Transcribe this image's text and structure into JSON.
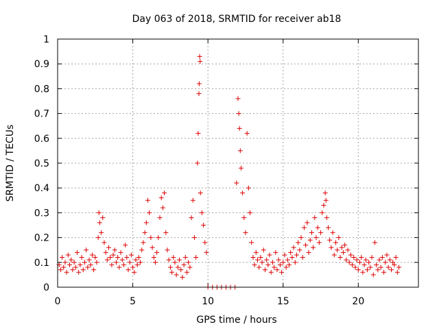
{
  "chart_data": {
    "type": "scatter",
    "title": "Day 063 of 2018, SRMTID for receiver ab18",
    "xlabel": "GPS time / hours",
    "ylabel": "SRMTID / TECUs",
    "xlim": [
      0,
      24
    ],
    "ylim": [
      0,
      1
    ],
    "xticks": [
      "0",
      "5",
      "10",
      "15",
      "20"
    ],
    "yticks": [
      "0",
      "0.1",
      "0.2",
      "0.3",
      "0.4",
      "0.5",
      "0.6",
      "0.7",
      "0.8",
      "0.9",
      "1"
    ],
    "grid": true,
    "marker": "+",
    "color": "#dd0000",
    "series": [
      {
        "name": "SRMTID",
        "points": [
          [
            0.1,
            0.09
          ],
          [
            0.2,
            0.07
          ],
          [
            0.3,
            0.12
          ],
          [
            0.4,
            0.08
          ],
          [
            0.5,
            0.1
          ],
          [
            0.6,
            0.06
          ],
          [
            0.7,
            0.13
          ],
          [
            0.8,
            0.09
          ],
          [
            0.9,
            0.11
          ],
          [
            1.0,
            0.07
          ],
          [
            1.1,
            0.1
          ],
          [
            1.2,
            0.08
          ],
          [
            1.3,
            0.14
          ],
          [
            1.4,
            0.06
          ],
          [
            1.5,
            0.09
          ],
          [
            1.6,
            0.12
          ],
          [
            1.7,
            0.07
          ],
          [
            1.8,
            0.1
          ],
          [
            1.9,
            0.15
          ],
          [
            2.0,
            0.08
          ],
          [
            2.1,
            0.11
          ],
          [
            2.2,
            0.09
          ],
          [
            2.3,
            0.13
          ],
          [
            2.4,
            0.07
          ],
          [
            2.5,
            0.12
          ],
          [
            2.6,
            0.1
          ],
          [
            2.7,
            0.2
          ],
          [
            2.75,
            0.3
          ],
          [
            2.8,
            0.26
          ],
          [
            2.9,
            0.22
          ],
          [
            3.0,
            0.28
          ],
          [
            3.1,
            0.18
          ],
          [
            3.2,
            0.14
          ],
          [
            3.3,
            0.11
          ],
          [
            3.4,
            0.16
          ],
          [
            3.5,
            0.12
          ],
          [
            3.6,
            0.09
          ],
          [
            3.7,
            0.13
          ],
          [
            3.8,
            0.15
          ],
          [
            3.9,
            0.1
          ],
          [
            4.0,
            0.12
          ],
          [
            4.1,
            0.08
          ],
          [
            4.2,
            0.14
          ],
          [
            4.3,
            0.11
          ],
          [
            4.4,
            0.09
          ],
          [
            4.5,
            0.17
          ],
          [
            4.6,
            0.12
          ],
          [
            4.7,
            0.07
          ],
          [
            4.8,
            0.1
          ],
          [
            4.9,
            0.13
          ],
          [
            5.0,
            0.08
          ],
          [
            5.1,
            0.06
          ],
          [
            5.2,
            0.11
          ],
          [
            5.3,
            0.09
          ],
          [
            5.4,
            0.12
          ],
          [
            5.5,
            0.1
          ],
          [
            5.6,
            0.15
          ],
          [
            5.7,
            0.18
          ],
          [
            5.8,
            0.22
          ],
          [
            5.9,
            0.26
          ],
          [
            6.0,
            0.35
          ],
          [
            6.1,
            0.3
          ],
          [
            6.2,
            0.2
          ],
          [
            6.3,
            0.16
          ],
          [
            6.4,
            0.12
          ],
          [
            6.5,
            0.1
          ],
          [
            6.6,
            0.14
          ],
          [
            6.7,
            0.2
          ],
          [
            6.8,
            0.28
          ],
          [
            6.9,
            0.36
          ],
          [
            7.0,
            0.32
          ],
          [
            7.1,
            0.38
          ],
          [
            7.2,
            0.22
          ],
          [
            7.3,
            0.15
          ],
          [
            7.4,
            0.11
          ],
          [
            7.5,
            0.08
          ],
          [
            7.6,
            0.06
          ],
          [
            7.7,
            0.12
          ],
          [
            7.8,
            0.1
          ],
          [
            7.9,
            0.05
          ],
          [
            8.0,
            0.08
          ],
          [
            8.1,
            0.11
          ],
          [
            8.2,
            0.07
          ],
          [
            8.3,
            0.04
          ],
          [
            8.4,
            0.09
          ],
          [
            8.5,
            0.12
          ],
          [
            8.6,
            0.06
          ],
          [
            8.7,
            0.1
          ],
          [
            8.8,
            0.08
          ],
          [
            8.9,
            0.28
          ],
          [
            9.0,
            0.35
          ],
          [
            9.1,
            0.2
          ],
          [
            9.2,
            0.12
          ],
          [
            9.3,
            0.5
          ],
          [
            9.35,
            0.62
          ],
          [
            9.4,
            0.78
          ],
          [
            9.42,
            0.82
          ],
          [
            9.45,
            0.93
          ],
          [
            9.48,
            0.91
          ],
          [
            9.5,
            0.38
          ],
          [
            9.6,
            0.3
          ],
          [
            9.7,
            0.25
          ],
          [
            9.8,
            0.18
          ],
          [
            9.9,
            0.14
          ],
          [
            10.0,
            0.0
          ],
          [
            10.3,
            0.0
          ],
          [
            10.6,
            0.0
          ],
          [
            10.9,
            0.0
          ],
          [
            11.2,
            0.0
          ],
          [
            11.5,
            0.0
          ],
          [
            11.8,
            0.0
          ],
          [
            11.9,
            0.42
          ],
          [
            12.0,
            0.76
          ],
          [
            12.05,
            0.7
          ],
          [
            12.1,
            0.64
          ],
          [
            12.15,
            0.55
          ],
          [
            12.2,
            0.48
          ],
          [
            12.3,
            0.38
          ],
          [
            12.4,
            0.28
          ],
          [
            12.5,
            0.22
          ],
          [
            12.6,
            0.62
          ],
          [
            12.7,
            0.4
          ],
          [
            12.8,
            0.3
          ],
          [
            12.9,
            0.18
          ],
          [
            13.0,
            0.12
          ],
          [
            13.1,
            0.09
          ],
          [
            13.2,
            0.14
          ],
          [
            13.3,
            0.11
          ],
          [
            13.4,
            0.08
          ],
          [
            13.5,
            0.12
          ],
          [
            13.6,
            0.1
          ],
          [
            13.7,
            0.15
          ],
          [
            13.8,
            0.07
          ],
          [
            13.9,
            0.11
          ],
          [
            14.0,
            0.09
          ],
          [
            14.1,
            0.13
          ],
          [
            14.2,
            0.06
          ],
          [
            14.3,
            0.1
          ],
          [
            14.4,
            0.08
          ],
          [
            14.5,
            0.14
          ],
          [
            14.6,
            0.07
          ],
          [
            14.7,
            0.11
          ],
          [
            14.8,
            0.09
          ],
          [
            14.9,
            0.06
          ],
          [
            15.0,
            0.1
          ],
          [
            15.1,
            0.13
          ],
          [
            15.2,
            0.08
          ],
          [
            15.3,
            0.11
          ],
          [
            15.4,
            0.09
          ],
          [
            15.5,
            0.14
          ],
          [
            15.6,
            0.12
          ],
          [
            15.7,
            0.16
          ],
          [
            15.8,
            0.1
          ],
          [
            15.9,
            0.13
          ],
          [
            16.0,
            0.18
          ],
          [
            16.1,
            0.15
          ],
          [
            16.2,
            0.2
          ],
          [
            16.3,
            0.12
          ],
          [
            16.4,
            0.24
          ],
          [
            16.5,
            0.17
          ],
          [
            16.6,
            0.26
          ],
          [
            16.7,
            0.14
          ],
          [
            16.8,
            0.19
          ],
          [
            16.9,
            0.22
          ],
          [
            17.0,
            0.16
          ],
          [
            17.1,
            0.28
          ],
          [
            17.2,
            0.2
          ],
          [
            17.3,
            0.24
          ],
          [
            17.4,
            0.18
          ],
          [
            17.5,
            0.22
          ],
          [
            17.6,
            0.3
          ],
          [
            17.7,
            0.33
          ],
          [
            17.8,
            0.38
          ],
          [
            17.85,
            0.35
          ],
          [
            17.9,
            0.28
          ],
          [
            18.0,
            0.24
          ],
          [
            18.1,
            0.19
          ],
          [
            18.2,
            0.16
          ],
          [
            18.3,
            0.22
          ],
          [
            18.4,
            0.13
          ],
          [
            18.5,
            0.18
          ],
          [
            18.6,
            0.15
          ],
          [
            18.7,
            0.2
          ],
          [
            18.8,
            0.12
          ],
          [
            18.9,
            0.16
          ],
          [
            19.0,
            0.14
          ],
          [
            19.1,
            0.17
          ],
          [
            19.2,
            0.11
          ],
          [
            19.3,
            0.15
          ],
          [
            19.4,
            0.1
          ],
          [
            19.5,
            0.13
          ],
          [
            19.6,
            0.09
          ],
          [
            19.7,
            0.12
          ],
          [
            19.8,
            0.08
          ],
          [
            19.9,
            0.11
          ],
          [
            20.0,
            0.07
          ],
          [
            20.1,
            0.1
          ],
          [
            20.2,
            0.12
          ],
          [
            20.3,
            0.06
          ],
          [
            20.4,
            0.09
          ],
          [
            20.5,
            0.11
          ],
          [
            20.6,
            0.07
          ],
          [
            20.7,
            0.1
          ],
          [
            20.8,
            0.08
          ],
          [
            20.9,
            0.12
          ],
          [
            21.0,
            0.05
          ],
          [
            21.1,
            0.18
          ],
          [
            21.2,
            0.09
          ],
          [
            21.3,
            0.07
          ],
          [
            21.4,
            0.11
          ],
          [
            21.5,
            0.08
          ],
          [
            21.6,
            0.12
          ],
          [
            21.7,
            0.06
          ],
          [
            21.8,
            0.1
          ],
          [
            21.9,
            0.13
          ],
          [
            22.0,
            0.08
          ],
          [
            22.1,
            0.11
          ],
          [
            22.2,
            0.07
          ],
          [
            22.3,
            0.1
          ],
          [
            22.4,
            0.09
          ],
          [
            22.5,
            0.12
          ],
          [
            22.6,
            0.06
          ],
          [
            22.7,
            0.08
          ]
        ]
      }
    ]
  }
}
